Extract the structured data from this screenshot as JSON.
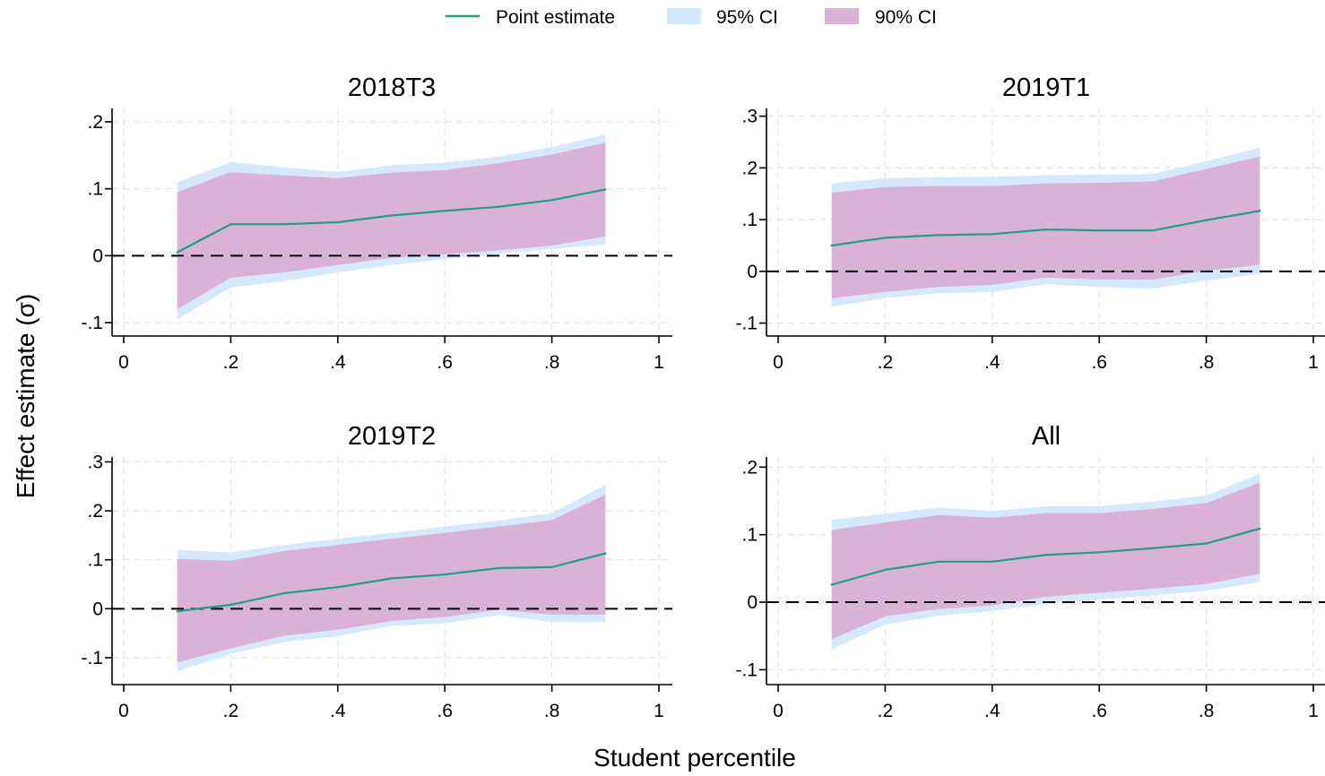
{
  "legend": {
    "items": [
      {
        "label": "Point estimate",
        "kind": "line",
        "color": "#1aa37f"
      },
      {
        "label": "95% CI",
        "kind": "patch",
        "color": "#d6e8fb"
      },
      {
        "label": "90% CI",
        "kind": "patch",
        "color": "#d9b2d6"
      }
    ],
    "placement": "top-center"
  },
  "ylabel": "Effect estimate (σ)",
  "xlabel": "Student percentile",
  "colors": {
    "point": "#1aa37f",
    "ci95": "#d6e8fb",
    "ci90": "#d9b2d6",
    "grid": "#e4e4e4",
    "zero_line": "#000000"
  },
  "chart_data": [
    {
      "type": "line",
      "title": "2018T3",
      "x": [
        0.1,
        0.2,
        0.3,
        0.4,
        0.5,
        0.6,
        0.7,
        0.8,
        0.9
      ],
      "xlim": [
        0,
        1
      ],
      "xticks": [
        0,
        0.2,
        0.4,
        0.6,
        0.8,
        1
      ],
      "xtick_labels": [
        "0",
        ".2",
        ".4",
        ".6",
        ".8",
        "1"
      ],
      "ylim": [
        -0.12,
        0.22
      ],
      "yticks": [
        -0.1,
        0,
        0.1,
        0.2
      ],
      "ytick_labels": [
        "-.1",
        "0",
        ".1",
        ".2"
      ],
      "grid": true,
      "series": [
        {
          "name": "Point estimate",
          "values": [
            0.005,
            0.047,
            0.047,
            0.05,
            0.06,
            0.067,
            0.073,
            0.083,
            0.099
          ]
        },
        {
          "name": "95% CI",
          "lower": [
            -0.095,
            -0.047,
            -0.038,
            -0.025,
            -0.014,
            -0.005,
            0.003,
            0.01,
            0.017
          ],
          "upper": [
            0.11,
            0.14,
            0.132,
            0.125,
            0.135,
            0.139,
            0.148,
            0.162,
            0.181
          ]
        },
        {
          "name": "90% CI",
          "lower": [
            -0.08,
            -0.033,
            -0.025,
            -0.014,
            -0.003,
            0.002,
            0.008,
            0.015,
            0.029
          ],
          "upper": [
            0.095,
            0.125,
            0.12,
            0.116,
            0.124,
            0.128,
            0.138,
            0.151,
            0.169
          ]
        }
      ]
    },
    {
      "type": "line",
      "title": "2019T1",
      "x": [
        0.1,
        0.2,
        0.3,
        0.4,
        0.5,
        0.6,
        0.7,
        0.8,
        0.9
      ],
      "xlim": [
        0,
        1
      ],
      "xticks": [
        0,
        0.2,
        0.4,
        0.6,
        0.8,
        1
      ],
      "xtick_labels": [
        "0",
        ".2",
        ".4",
        ".6",
        ".8",
        "1"
      ],
      "ylim": [
        -0.125,
        0.315
      ],
      "yticks": [
        -0.1,
        0,
        0.1,
        0.2,
        0.3
      ],
      "ytick_labels": [
        "-.1",
        "0",
        ".1",
        ".2",
        ".3"
      ],
      "grid": true,
      "series": [
        {
          "name": "Point estimate",
          "values": [
            0.05,
            0.065,
            0.07,
            0.072,
            0.081,
            0.079,
            0.079,
            0.099,
            0.117
          ]
        },
        {
          "name": "95% CI",
          "lower": [
            -0.068,
            -0.052,
            -0.042,
            -0.04,
            -0.025,
            -0.03,
            -0.033,
            -0.018,
            -0.005
          ],
          "upper": [
            0.17,
            0.18,
            0.182,
            0.183,
            0.186,
            0.187,
            0.188,
            0.213,
            0.239
          ]
        },
        {
          "name": "90% CI",
          "lower": [
            -0.052,
            -0.04,
            -0.03,
            -0.026,
            -0.012,
            -0.016,
            -0.016,
            0.001,
            0.013
          ],
          "upper": [
            0.152,
            0.163,
            0.165,
            0.165,
            0.17,
            0.171,
            0.174,
            0.198,
            0.222
          ]
        }
      ]
    },
    {
      "type": "line",
      "title": "2019T2",
      "x": [
        0.1,
        0.2,
        0.3,
        0.4,
        0.5,
        0.6,
        0.7,
        0.8,
        0.9
      ],
      "xlim": [
        0,
        1
      ],
      "xticks": [
        0,
        0.2,
        0.4,
        0.6,
        0.8,
        1
      ],
      "xtick_labels": [
        "0",
        ".2",
        ".4",
        ".6",
        ".8",
        "1"
      ],
      "ylim": [
        -0.155,
        0.31
      ],
      "yticks": [
        -0.1,
        0,
        0.1,
        0.2,
        0.3
      ],
      "ytick_labels": [
        "-.1",
        "0",
        ".1",
        ".2",
        ".3"
      ],
      "grid": true,
      "series": [
        {
          "name": "Point estimate",
          "values": [
            -0.005,
            0.008,
            0.032,
            0.044,
            0.062,
            0.07,
            0.083,
            0.085,
            0.113
          ]
        },
        {
          "name": "95% CI",
          "lower": [
            -0.128,
            -0.092,
            -0.068,
            -0.056,
            -0.035,
            -0.03,
            -0.013,
            -0.027,
            -0.027
          ],
          "upper": [
            0.12,
            0.115,
            0.13,
            0.143,
            0.155,
            0.168,
            0.18,
            0.195,
            0.253
          ]
        },
        {
          "name": "90% CI",
          "lower": [
            -0.11,
            -0.081,
            -0.055,
            -0.043,
            -0.025,
            -0.017,
            -0.002,
            -0.012,
            -0.012
          ],
          "upper": [
            0.102,
            0.098,
            0.118,
            0.13,
            0.143,
            0.155,
            0.168,
            0.181,
            0.233
          ]
        }
      ]
    },
    {
      "type": "line",
      "title": "All",
      "x": [
        0.1,
        0.2,
        0.3,
        0.4,
        0.5,
        0.6,
        0.7,
        0.8,
        0.9
      ],
      "xlim": [
        0,
        1
      ],
      "xticks": [
        0,
        0.2,
        0.4,
        0.6,
        0.8,
        1
      ],
      "xtick_labels": [
        "0",
        ".2",
        ".4",
        ".6",
        ".8",
        "1"
      ],
      "ylim": [
        -0.122,
        0.215
      ],
      "yticks": [
        -0.1,
        0,
        0.1,
        0.2
      ],
      "ytick_labels": [
        "-.1",
        "0",
        ".1",
        ".2"
      ],
      "grid": true,
      "series": [
        {
          "name": "Point estimate",
          "values": [
            0.026,
            0.048,
            0.06,
            0.06,
            0.07,
            0.074,
            0.08,
            0.087,
            0.109
          ]
        },
        {
          "name": "95% CI",
          "lower": [
            -0.07,
            -0.033,
            -0.02,
            -0.013,
            -0.003,
            0.004,
            0.01,
            0.017,
            0.03
          ],
          "upper": [
            0.122,
            0.131,
            0.14,
            0.135,
            0.142,
            0.142,
            0.149,
            0.158,
            0.19
          ]
        },
        {
          "name": "90% CI",
          "lower": [
            -0.055,
            -0.021,
            -0.01,
            -0.005,
            0.008,
            0.014,
            0.02,
            0.027,
            0.042
          ],
          "upper": [
            0.107,
            0.118,
            0.129,
            0.125,
            0.132,
            0.132,
            0.138,
            0.147,
            0.177
          ]
        }
      ]
    }
  ]
}
